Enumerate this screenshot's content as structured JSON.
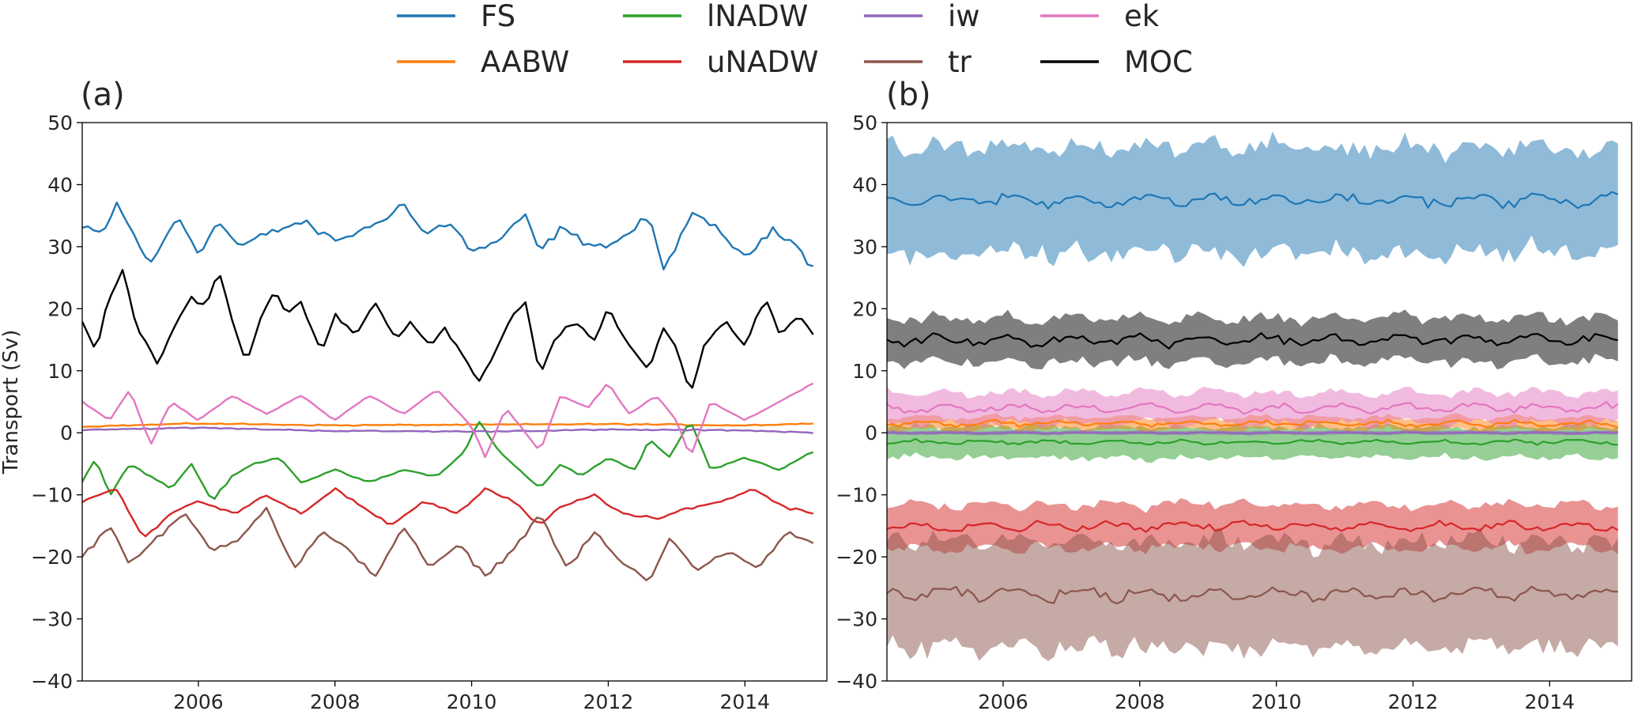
{
  "chart_data": [
    {
      "panel_label": "(a)",
      "type": "line",
      "ylabel": "Transport (Sv)",
      "xlabel": "",
      "xlim": [
        2004.3,
        2015.2
      ],
      "ylim": [
        -40,
        50
      ],
      "x_ticks": [
        2006,
        2008,
        2010,
        2012,
        2014
      ],
      "x_tick_labels": [
        "2006",
        "2008",
        "2010",
        "2012",
        "2014"
      ],
      "y_ticks": [
        -40,
        -30,
        -20,
        -10,
        0,
        10,
        20,
        30,
        40,
        50
      ],
      "y_tick_labels": [
        "−40",
        "−30",
        "−20",
        "−10",
        "0",
        "10",
        "20",
        "30",
        "40",
        "50"
      ],
      "x_start": 2004.3,
      "x_end": 2015.0,
      "series": [
        {
          "name": "FS",
          "color": "#1f77b4",
          "keypoints": [
            [
              2004.3,
              33
            ],
            [
              2004.6,
              32
            ],
            [
              2004.8,
              37
            ],
            [
              2005.0,
              33
            ],
            [
              2005.3,
              27
            ],
            [
              2005.5,
              31
            ],
            [
              2005.7,
              35
            ],
            [
              2006.0,
              29
            ],
            [
              2006.3,
              34
            ],
            [
              2006.6,
              30
            ],
            [
              2007.0,
              32
            ],
            [
              2007.5,
              34
            ],
            [
              2008.0,
              31
            ],
            [
              2008.5,
              33
            ],
            [
              2009.0,
              37
            ],
            [
              2009.3,
              32
            ],
            [
              2009.7,
              34
            ],
            [
              2010.0,
              29
            ],
            [
              2010.4,
              31
            ],
            [
              2010.8,
              35
            ],
            [
              2011.0,
              29
            ],
            [
              2011.3,
              33
            ],
            [
              2011.6,
              31
            ],
            [
              2012.0,
              30
            ],
            [
              2012.4,
              33
            ],
            [
              2012.6,
              35
            ],
            [
              2012.8,
              26
            ],
            [
              2013.2,
              35
            ],
            [
              2013.6,
              33
            ],
            [
              2014.0,
              28
            ],
            [
              2014.4,
              33
            ],
            [
              2014.7,
              31
            ],
            [
              2015.0,
              26.5
            ]
          ]
        },
        {
          "name": "AABW",
          "color": "#ff7f0e",
          "keypoints": [
            [
              2004.3,
              1
            ],
            [
              2006.0,
              1.5
            ],
            [
              2008.0,
              1.2
            ],
            [
              2010.0,
              1.3
            ],
            [
              2012.0,
              1.4
            ],
            [
              2014.0,
              1.2
            ],
            [
              2015.0,
              1.5
            ]
          ]
        },
        {
          "name": "lNADW",
          "color": "#2ca02c",
          "keypoints": [
            [
              2004.3,
              -8
            ],
            [
              2004.5,
              -4
            ],
            [
              2004.7,
              -10
            ],
            [
              2005.0,
              -5
            ],
            [
              2005.3,
              -7
            ],
            [
              2005.6,
              -9
            ],
            [
              2005.9,
              -5
            ],
            [
              2006.2,
              -11
            ],
            [
              2006.5,
              -7
            ],
            [
              2006.8,
              -5
            ],
            [
              2007.2,
              -4
            ],
            [
              2007.5,
              -8
            ],
            [
              2008.0,
              -6
            ],
            [
              2008.5,
              -8
            ],
            [
              2009.0,
              -6
            ],
            [
              2009.5,
              -7
            ],
            [
              2009.9,
              -3
            ],
            [
              2010.1,
              2
            ],
            [
              2010.4,
              -3
            ],
            [
              2010.7,
              -6
            ],
            [
              2011.0,
              -9
            ],
            [
              2011.3,
              -5
            ],
            [
              2011.6,
              -7
            ],
            [
              2012.0,
              -4
            ],
            [
              2012.4,
              -6
            ],
            [
              2012.6,
              -1
            ],
            [
              2012.9,
              -4
            ],
            [
              2013.2,
              2
            ],
            [
              2013.5,
              -6
            ],
            [
              2014.0,
              -4
            ],
            [
              2014.5,
              -6
            ],
            [
              2015.0,
              -3
            ]
          ]
        },
        {
          "name": "uNADW",
          "color": "#d62728",
          "keypoints": [
            [
              2004.3,
              -11
            ],
            [
              2004.8,
              -9
            ],
            [
              2005.2,
              -17
            ],
            [
              2005.6,
              -13
            ],
            [
              2006.0,
              -11
            ],
            [
              2006.5,
              -13
            ],
            [
              2007.0,
              -10
            ],
            [
              2007.5,
              -13
            ],
            [
              2008.0,
              -9
            ],
            [
              2008.4,
              -12
            ],
            [
              2008.8,
              -15
            ],
            [
              2009.3,
              -11
            ],
            [
              2009.8,
              -13
            ],
            [
              2010.2,
              -9
            ],
            [
              2010.6,
              -11
            ],
            [
              2011.0,
              -15
            ],
            [
              2011.3,
              -12
            ],
            [
              2011.8,
              -10
            ],
            [
              2012.2,
              -13
            ],
            [
              2012.7,
              -14
            ],
            [
              2013.2,
              -12
            ],
            [
              2013.7,
              -11
            ],
            [
              2014.1,
              -9
            ],
            [
              2014.6,
              -12
            ],
            [
              2015.0,
              -13
            ]
          ]
        },
        {
          "name": "iw",
          "color": "#9467bd",
          "keypoints": [
            [
              2004.3,
              0.5
            ],
            [
              2006.0,
              0.8
            ],
            [
              2008.0,
              0.3
            ],
            [
              2010.0,
              0.2
            ],
            [
              2012.0,
              0.5
            ],
            [
              2014.0,
              0.4
            ],
            [
              2015.0,
              0
            ]
          ]
        },
        {
          "name": "tr",
          "color": "#8c564b",
          "keypoints": [
            [
              2004.3,
              -20
            ],
            [
              2004.7,
              -15
            ],
            [
              2005.0,
              -21
            ],
            [
              2005.4,
              -17
            ],
            [
              2005.8,
              -13
            ],
            [
              2006.2,
              -19
            ],
            [
              2006.6,
              -17
            ],
            [
              2007.0,
              -12
            ],
            [
              2007.4,
              -22
            ],
            [
              2007.8,
              -16
            ],
            [
              2008.2,
              -19
            ],
            [
              2008.6,
              -23
            ],
            [
              2009.0,
              -15
            ],
            [
              2009.4,
              -22
            ],
            [
              2009.8,
              -18
            ],
            [
              2010.2,
              -23
            ],
            [
              2010.6,
              -19
            ],
            [
              2011.0,
              -13
            ],
            [
              2011.4,
              -22
            ],
            [
              2011.8,
              -16
            ],
            [
              2012.2,
              -21
            ],
            [
              2012.6,
              -24
            ],
            [
              2012.9,
              -17
            ],
            [
              2013.3,
              -22
            ],
            [
              2013.8,
              -19
            ],
            [
              2014.2,
              -22
            ],
            [
              2014.6,
              -16
            ],
            [
              2015.0,
              -18
            ]
          ]
        },
        {
          "name": "ek",
          "color": "#e377c2",
          "keypoints": [
            [
              2004.3,
              5
            ],
            [
              2004.7,
              2
            ],
            [
              2005.0,
              7
            ],
            [
              2005.3,
              -2
            ],
            [
              2005.6,
              5
            ],
            [
              2006.0,
              2
            ],
            [
              2006.5,
              6
            ],
            [
              2007.0,
              3
            ],
            [
              2007.5,
              6
            ],
            [
              2008.0,
              2
            ],
            [
              2008.5,
              6
            ],
            [
              2009.0,
              3
            ],
            [
              2009.5,
              7
            ],
            [
              2010.0,
              1
            ],
            [
              2010.2,
              -4
            ],
            [
              2010.5,
              4
            ],
            [
              2011.0,
              -3
            ],
            [
              2011.3,
              6
            ],
            [
              2011.7,
              4
            ],
            [
              2012.0,
              8
            ],
            [
              2012.3,
              3
            ],
            [
              2012.7,
              6
            ],
            [
              2013.0,
              2
            ],
            [
              2013.2,
              -4
            ],
            [
              2013.5,
              5
            ],
            [
              2014.0,
              2
            ],
            [
              2014.5,
              5
            ],
            [
              2015.0,
              8
            ]
          ]
        },
        {
          "name": "MOC",
          "color": "#000000",
          "keypoints": [
            [
              2004.3,
              18
            ],
            [
              2004.5,
              13
            ],
            [
              2004.7,
              22
            ],
            [
              2004.9,
              26
            ],
            [
              2005.1,
              17
            ],
            [
              2005.4,
              11
            ],
            [
              2005.6,
              16
            ],
            [
              2005.9,
              22
            ],
            [
              2006.1,
              20
            ],
            [
              2006.3,
              26
            ],
            [
              2006.5,
              18
            ],
            [
              2006.7,
              11
            ],
            [
              2006.9,
              18
            ],
            [
              2007.1,
              23
            ],
            [
              2007.3,
              19
            ],
            [
              2007.5,
              21
            ],
            [
              2007.8,
              13
            ],
            [
              2008.0,
              19
            ],
            [
              2008.3,
              16
            ],
            [
              2008.6,
              21
            ],
            [
              2008.9,
              15
            ],
            [
              2009.1,
              18
            ],
            [
              2009.4,
              14
            ],
            [
              2009.6,
              17
            ],
            [
              2009.9,
              12
            ],
            [
              2010.1,
              8
            ],
            [
              2010.3,
              12
            ],
            [
              2010.6,
              19
            ],
            [
              2010.8,
              21
            ],
            [
              2011.0,
              9
            ],
            [
              2011.2,
              15
            ],
            [
              2011.5,
              18
            ],
            [
              2011.8,
              15
            ],
            [
              2012.0,
              20
            ],
            [
              2012.3,
              14
            ],
            [
              2012.6,
              10
            ],
            [
              2012.8,
              17
            ],
            [
              2013.0,
              14
            ],
            [
              2013.2,
              6
            ],
            [
              2013.4,
              14
            ],
            [
              2013.7,
              18
            ],
            [
              2014.0,
              14
            ],
            [
              2014.3,
              22
            ],
            [
              2014.5,
              16
            ],
            [
              2014.8,
              19
            ],
            [
              2015.0,
              16
            ]
          ]
        }
      ]
    },
    {
      "panel_label": "(b)",
      "type": "area",
      "ylabel": "",
      "xlabel": "",
      "xlim": [
        2004.3,
        2015.2
      ],
      "ylim": [
        -40,
        50
      ],
      "x_ticks": [
        2006,
        2008,
        2010,
        2012,
        2014
      ],
      "x_tick_labels": [
        "2006",
        "2008",
        "2010",
        "2012",
        "2014"
      ],
      "y_ticks": [
        -40,
        -30,
        -20,
        -10,
        0,
        10,
        20,
        30,
        40,
        50
      ],
      "y_tick_labels": [
        "−40",
        "−30",
        "−20",
        "−10",
        "0",
        "10",
        "20",
        "30",
        "40",
        "50"
      ],
      "x_start": 2004.3,
      "x_end": 2015.0,
      "series": [
        {
          "name": "FS",
          "color": "#1f77b4",
          "mean": 37.5,
          "spread": 8.5,
          "amp": 1.2
        },
        {
          "name": "AABW",
          "color": "#ff7f0e",
          "mean": 1.5,
          "spread": 1.0,
          "amp": 0.5
        },
        {
          "name": "lNADW",
          "color": "#2ca02c",
          "mean": -1.5,
          "spread": 2.5,
          "amp": 0.4
        },
        {
          "name": "uNADW",
          "color": "#d62728",
          "mean": -15,
          "spread": 3.5,
          "amp": 0.8
        },
        {
          "name": "iw",
          "color": "#9467bd",
          "mean": 0,
          "spread": 0.3,
          "amp": 0.1
        },
        {
          "name": "tr",
          "color": "#8c564b",
          "mean": -26,
          "spread": 8.5,
          "amp": 1.2
        },
        {
          "name": "ek",
          "color": "#e377c2",
          "mean": 4,
          "spread": 2.5,
          "amp": 0.8
        },
        {
          "name": "MOC",
          "color": "#000000",
          "mean": 15,
          "spread": 3.5,
          "amp": 1.0
        }
      ]
    }
  ],
  "legend": {
    "entries": [
      {
        "label": "FS",
        "color": "#1f77b4"
      },
      {
        "label": "AABW",
        "color": "#ff7f0e"
      },
      {
        "label": "lNADW",
        "color": "#2ca02c"
      },
      {
        "label": "uNADW",
        "color": "#d62728"
      },
      {
        "label": "iw",
        "color": "#9467bd"
      },
      {
        "label": "tr",
        "color": "#8c564b"
      },
      {
        "label": "ek",
        "color": "#e377c2"
      },
      {
        "label": "MOC",
        "color": "#000000"
      }
    ]
  }
}
